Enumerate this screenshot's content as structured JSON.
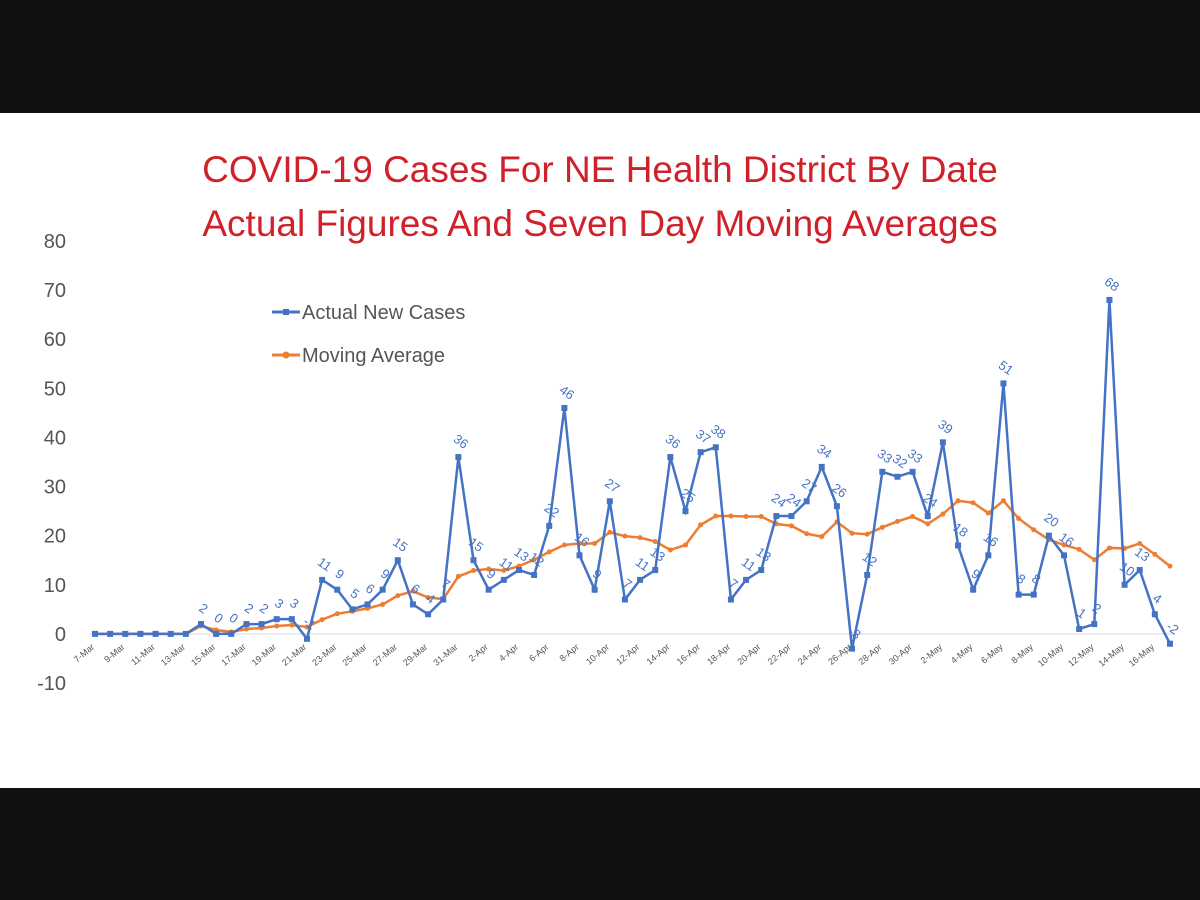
{
  "colors": {
    "series_actual": "#4472c4",
    "series_average": "#ed7d31",
    "title": "#d0202a",
    "background": "#ffffff",
    "letterbox": "#111111"
  },
  "chart_data": {
    "type": "line",
    "title_lines": [
      "COVID-19 Cases For NE Health District By Date",
      "Actual Figures And Seven Day Moving Averages"
    ],
    "ylim": [
      -10,
      80
    ],
    "yticks": [
      -10,
      0,
      10,
      20,
      30,
      40,
      50,
      60,
      70,
      80
    ],
    "grid": false,
    "legend_position": "top-left",
    "x": [
      "7-Mar",
      "8-Mar",
      "9-Mar",
      "10-Mar",
      "11-Mar",
      "12-Mar",
      "13-Mar",
      "14-Mar",
      "15-Mar",
      "16-Mar",
      "17-Mar",
      "18-Mar",
      "19-Mar",
      "20-Mar",
      "21-Mar",
      "22-Mar",
      "23-Mar",
      "24-Mar",
      "25-Mar",
      "26-Mar",
      "27-Mar",
      "28-Mar",
      "29-Mar",
      "30-Mar",
      "31-Mar",
      "1-Apr",
      "2-Apr",
      "3-Apr",
      "4-Apr",
      "5-Apr",
      "6-Apr",
      "7-Apr",
      "8-Apr",
      "9-Apr",
      "10-Apr",
      "11-Apr",
      "12-Apr",
      "13-Apr",
      "14-Apr",
      "15-Apr",
      "16-Apr",
      "17-Apr",
      "18-Apr",
      "19-Apr",
      "20-Apr",
      "21-Apr",
      "22-Apr",
      "23-Apr",
      "24-Apr",
      "25-Apr",
      "26-Apr",
      "27-Apr",
      "28-Apr",
      "29-Apr",
      "30-Apr",
      "1-May",
      "2-May",
      "3-May",
      "4-May",
      "5-May",
      "6-May",
      "7-May",
      "8-May",
      "9-May",
      "10-May",
      "11-May",
      "12-May",
      "13-May",
      "14-May",
      "15-May",
      "16-May",
      "17-May"
    ],
    "x_tick_labels": [
      "7-Mar",
      "9-Mar",
      "11-Mar",
      "13-Mar",
      "15-Mar",
      "17-Mar",
      "19-Mar",
      "21-Mar",
      "23-Mar",
      "25-Mar",
      "27-Mar",
      "29-Mar",
      "31-Mar",
      "2-Apr",
      "4-Apr",
      "6-Apr",
      "8-Apr",
      "10-Apr",
      "12-Apr",
      "14-Apr",
      "16-Apr",
      "18-Apr",
      "20-Apr",
      "22-Apr",
      "24-Apr",
      "26-Apr",
      "28-Apr",
      "30-Apr",
      "2-May",
      "4-May",
      "6-May",
      "8-May",
      "10-May",
      "12-May",
      "14-May",
      "16-May"
    ],
    "series": [
      {
        "name": "Actual New Cases",
        "values": [
          0,
          0,
          0,
          0,
          0,
          0,
          0,
          2,
          0,
          0,
          2,
          2,
          3,
          3,
          -1,
          11,
          9,
          5,
          6,
          9,
          15,
          6,
          4,
          7,
          36,
          15,
          9,
          11,
          13,
          12,
          22,
          46,
          16,
          9,
          27,
          7,
          11,
          13,
          36,
          25,
          37,
          38,
          7,
          11,
          13,
          24,
          24,
          27,
          34,
          26,
          -3,
          12,
          33,
          32,
          33,
          24,
          39,
          18,
          9,
          16,
          51,
          8,
          8,
          20,
          16,
          1,
          2,
          68,
          10,
          13,
          4,
          -2
        ],
        "labels": [
          "",
          "",
          "",
          "",
          "",
          "",
          "",
          "2",
          "0",
          "0",
          "2",
          "2",
          "3",
          "3",
          "-1",
          "11",
          "9",
          "5",
          "6",
          "9",
          "15",
          "6",
          "4",
          "7",
          "36",
          "15",
          "9",
          "11",
          "13",
          "12",
          "22",
          "46",
          "16",
          "9",
          "27",
          "7",
          "11",
          "13",
          "36",
          "25",
          "37",
          "38",
          "7",
          "11",
          "13",
          "24",
          "24",
          "27",
          "34",
          "26",
          "-3",
          "12",
          "33",
          "32",
          "33",
          "24",
          "39",
          "18",
          "9",
          "16",
          "51",
          "8",
          "8",
          "20",
          "16",
          "1",
          "2",
          "68",
          "10",
          "13",
          "4",
          "-2"
        ]
      },
      {
        "name": "Moving Average",
        "values": [
          0,
          0,
          0,
          0,
          0,
          0,
          0,
          1.6,
          0.8,
          0.4,
          1,
          1.2,
          1.6,
          1.8,
          1.4,
          2.9,
          4.1,
          4.6,
          5.2,
          6,
          7.8,
          8.7,
          7.4,
          7.1,
          11.7,
          12.9,
          13.2,
          12.9,
          13.8,
          15.1,
          16.7,
          18.1,
          18.4,
          18.4,
          20.7,
          19.9,
          19.6,
          18.8,
          17.1,
          18.1,
          22.2,
          24,
          24,
          23.9,
          23.9,
          22.4,
          22,
          20.4,
          19.8,
          22.8,
          20.5,
          20.3,
          21.7,
          22.9,
          23.9,
          22.4,
          24.4,
          27.1,
          26.7,
          24.6,
          27.1,
          23.5,
          21.2,
          19.2,
          18.1,
          17.2,
          15.1,
          17.5,
          17.4,
          18.4,
          16.2,
          13.8
        ]
      }
    ]
  }
}
